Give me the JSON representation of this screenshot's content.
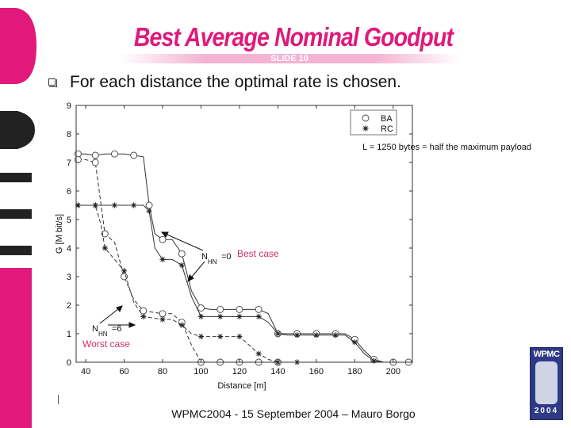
{
  "slide": {
    "title": "Best Average Nominal Goodput",
    "slide_number": "SLIDE 10",
    "bullet": "For each distance the optimal rate is chosen.",
    "footer": "WPMC2004 - 15 September 2004 – Mauro Borgo",
    "logo": {
      "top": "WPMC",
      "bottom": "2004"
    },
    "colors": {
      "title": "#e0197a",
      "annotation": "#d0306a",
      "logo": "#2f3a86"
    }
  },
  "chart_data": {
    "type": "line",
    "xlabel": "Distance [m]",
    "ylabel": "G [M bit/s]",
    "xlim": [
      35,
      210
    ],
    "ylim": [
      0,
      9
    ],
    "x_ticks": [
      40,
      60,
      80,
      100,
      120,
      140,
      160,
      180,
      200
    ],
    "y_ticks": [
      0,
      1,
      2,
      3,
      4,
      5,
      6,
      7,
      8,
      9
    ],
    "legend": {
      "placement": "top-right",
      "entries": [
        {
          "marker": "circle",
          "label": "BA"
        },
        {
          "marker": "star",
          "label": "RC"
        }
      ]
    },
    "annotations": [
      {
        "text": "L = 1250 bytes = half the maximum payload"
      },
      {
        "text": "Best case",
        "color": "#d0306a"
      },
      {
        "text": "Worst case",
        "color": "#d0306a"
      },
      {
        "label": "N",
        "sub": "HN",
        "suffix": "=0"
      },
      {
        "label": "N",
        "sub": "HN",
        "suffix": "=6"
      }
    ],
    "series": [
      {
        "marker": "circle",
        "style": "solid",
        "points": [
          [
            36,
            7.3
          ],
          [
            40,
            7.3
          ],
          [
            45,
            7.25
          ],
          [
            50,
            7.3
          ],
          [
            55,
            7.3
          ],
          [
            60,
            7.3
          ],
          [
            65,
            7.25
          ],
          [
            70,
            7.2
          ],
          [
            73,
            5.5
          ],
          [
            76,
            4.5
          ],
          [
            80,
            4.3
          ],
          [
            85,
            4.3
          ],
          [
            90,
            3.8
          ],
          [
            95,
            2.5
          ],
          [
            100,
            1.9
          ],
          [
            105,
            1.85
          ],
          [
            110,
            1.85
          ],
          [
            115,
            1.85
          ],
          [
            120,
            1.85
          ],
          [
            125,
            1.85
          ],
          [
            130,
            1.85
          ],
          [
            135,
            1.7
          ],
          [
            140,
            1.0
          ],
          [
            145,
            1.0
          ],
          [
            150,
            1.0
          ],
          [
            155,
            1.0
          ],
          [
            160,
            1.0
          ],
          [
            165,
            1.0
          ],
          [
            170,
            1.0
          ],
          [
            175,
            1.0
          ],
          [
            180,
            0.8
          ],
          [
            185,
            0.4
          ],
          [
            190,
            0.1
          ],
          [
            195,
            0.0
          ],
          [
            200,
            0.0
          ],
          [
            205,
            0.0
          ],
          [
            208,
            0.0
          ]
        ]
      },
      {
        "marker": "star",
        "style": "solid",
        "points": [
          [
            36,
            5.5
          ],
          [
            40,
            5.5
          ],
          [
            45,
            5.5
          ],
          [
            50,
            5.5
          ],
          [
            55,
            5.5
          ],
          [
            60,
            5.5
          ],
          [
            65,
            5.5
          ],
          [
            70,
            5.5
          ],
          [
            73,
            5.3
          ],
          [
            76,
            4.0
          ],
          [
            80,
            3.6
          ],
          [
            85,
            3.6
          ],
          [
            90,
            3.4
          ],
          [
            95,
            2.3
          ],
          [
            100,
            1.6
          ],
          [
            105,
            1.6
          ],
          [
            110,
            1.6
          ],
          [
            115,
            1.6
          ],
          [
            120,
            1.6
          ],
          [
            125,
            1.6
          ],
          [
            130,
            1.6
          ],
          [
            135,
            1.4
          ],
          [
            140,
            1.0
          ],
          [
            145,
            0.95
          ],
          [
            150,
            0.95
          ],
          [
            155,
            0.95
          ],
          [
            160,
            0.95
          ],
          [
            165,
            0.95
          ],
          [
            170,
            0.95
          ],
          [
            175,
            0.95
          ],
          [
            180,
            0.7
          ],
          [
            185,
            0.3
          ],
          [
            190,
            0.05
          ],
          [
            195,
            0.0
          ]
        ]
      },
      {
        "marker": "circle",
        "style": "dashed",
        "points": [
          [
            36,
            7.1
          ],
          [
            40,
            7.1
          ],
          [
            45,
            7.0
          ],
          [
            48,
            5.5
          ],
          [
            50,
            4.5
          ],
          [
            55,
            4.2
          ],
          [
            60,
            3.0
          ],
          [
            65,
            2.2
          ],
          [
            70,
            1.8
          ],
          [
            75,
            1.75
          ],
          [
            80,
            1.7
          ],
          [
            85,
            1.7
          ],
          [
            90,
            1.4
          ],
          [
            95,
            0.6
          ],
          [
            100,
            0.0
          ],
          [
            105,
            0.0
          ],
          [
            110,
            0.0
          ],
          [
            115,
            0.0
          ],
          [
            120,
            0.0
          ],
          [
            125,
            0.0
          ],
          [
            130,
            0.0
          ],
          [
            135,
            0.0
          ],
          [
            140,
            0.0
          ]
        ]
      },
      {
        "marker": "star",
        "style": "dashed",
        "points": [
          [
            36,
            5.5
          ],
          [
            40,
            5.5
          ],
          [
            45,
            5.5
          ],
          [
            48,
            4.8
          ],
          [
            50,
            4.0
          ],
          [
            55,
            3.6
          ],
          [
            60,
            3.2
          ],
          [
            65,
            2.1
          ],
          [
            70,
            1.6
          ],
          [
            75,
            1.55
          ],
          [
            80,
            1.5
          ],
          [
            85,
            1.5
          ],
          [
            90,
            1.3
          ],
          [
            95,
            1.0
          ],
          [
            100,
            0.9
          ],
          [
            105,
            0.9
          ],
          [
            110,
            0.9
          ],
          [
            115,
            0.9
          ],
          [
            120,
            0.9
          ],
          [
            125,
            0.6
          ],
          [
            130,
            0.3
          ],
          [
            135,
            0.1
          ],
          [
            140,
            0.0
          ],
          [
            145,
            0.0
          ],
          [
            150,
            0.0
          ],
          [
            155,
            0.0
          ]
        ]
      }
    ]
  }
}
